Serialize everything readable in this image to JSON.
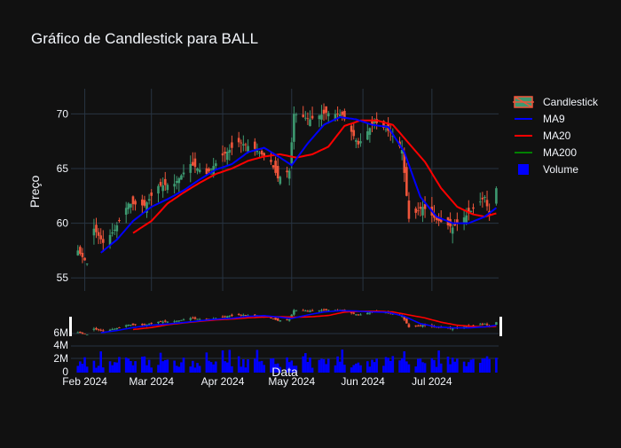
{
  "chart_data": {
    "type": "candlestick",
    "title": "Gráfico de Candlestick para BALL",
    "xlabel": "Data",
    "ylabel": "Preço",
    "legend_placement": "right",
    "colors": {
      "background": "#111111",
      "grid": "#283442",
      "increasing": "#3d9970",
      "decreasing": "#ef553b",
      "ma9": "#0000ff",
      "ma20": "#ff0000",
      "ma200": "#008000",
      "volume": "#0000ff"
    },
    "price_axis": {
      "ylim": [
        53.8,
        72.3
      ],
      "ticks": [
        55,
        60,
        65,
        70
      ]
    },
    "x_axis": {
      "range": [
        "2024-01-26",
        "2024-07-30"
      ],
      "ticks": [
        {
          "date": "2024-02-01",
          "label": "Feb 2024"
        },
        {
          "date": "2024-03-01",
          "label": "Mar 2024"
        },
        {
          "date": "2024-04-01",
          "label": "Apr 2024"
        },
        {
          "date": "2024-05-01",
          "label": "May 2024"
        },
        {
          "date": "2024-06-01",
          "label": "Jun 2024"
        },
        {
          "date": "2024-07-01",
          "label": "Jul 2024"
        }
      ]
    },
    "overview_axis": {
      "ticks": [
        {
          "value": 6,
          "label": "6M"
        },
        {
          "value": 4,
          "label": "4M"
        },
        {
          "value": 2,
          "label": "2M"
        },
        {
          "value": 0,
          "label": "0"
        }
      ]
    },
    "volume_axis": {
      "ylim": [
        0,
        3.3
      ]
    },
    "legend": [
      {
        "key": "candles",
        "label": "Candlestick"
      },
      {
        "key": "ma9",
        "label": "MA9"
      },
      {
        "key": "ma20",
        "label": "MA20"
      },
      {
        "key": "ma200",
        "label": "MA200"
      },
      {
        "key": "volume",
        "label": "Volume"
      }
    ],
    "series": {
      "ma9_anchors": [
        [
          "2024-02-08",
          57.3
        ],
        [
          "2024-02-15",
          58.5
        ],
        [
          "2024-02-22",
          60.2
        ],
        [
          "2024-03-01",
          61.5
        ],
        [
          "2024-03-08",
          62.2
        ],
        [
          "2024-03-15",
          63.0
        ],
        [
          "2024-03-22",
          64.0
        ],
        [
          "2024-03-29",
          64.9
        ],
        [
          "2024-04-05",
          65.4
        ],
        [
          "2024-04-12",
          66.5
        ],
        [
          "2024-04-19",
          66.9
        ],
        [
          "2024-04-26",
          66.0
        ],
        [
          "2024-05-01",
          65.3
        ],
        [
          "2024-05-08",
          67.3
        ],
        [
          "2024-05-15",
          69.0
        ],
        [
          "2024-05-22",
          69.7
        ],
        [
          "2024-05-29",
          69.5
        ],
        [
          "2024-06-05",
          69.0
        ],
        [
          "2024-06-12",
          68.8
        ],
        [
          "2024-06-19",
          66.5
        ],
        [
          "2024-06-26",
          62.4
        ],
        [
          "2024-07-03",
          60.6
        ],
        [
          "2024-07-10",
          60.0
        ],
        [
          "2024-07-17",
          60.0
        ],
        [
          "2024-07-24",
          60.6
        ],
        [
          "2024-07-29",
          61.4
        ]
      ],
      "ma20_anchors": [
        [
          "2024-02-22",
          59.1
        ],
        [
          "2024-03-01",
          60.2
        ],
        [
          "2024-03-08",
          61.8
        ],
        [
          "2024-03-15",
          62.8
        ],
        [
          "2024-03-22",
          63.7
        ],
        [
          "2024-03-29",
          64.5
        ],
        [
          "2024-04-05",
          65.0
        ],
        [
          "2024-04-12",
          65.7
        ],
        [
          "2024-04-19",
          66.1
        ],
        [
          "2024-04-26",
          66.3
        ],
        [
          "2024-05-03",
          66.0
        ],
        [
          "2024-05-10",
          66.3
        ],
        [
          "2024-05-17",
          67.0
        ],
        [
          "2024-05-24",
          68.9
        ],
        [
          "2024-05-31",
          69.4
        ],
        [
          "2024-06-07",
          69.4
        ],
        [
          "2024-06-14",
          69.0
        ],
        [
          "2024-06-21",
          67.3
        ],
        [
          "2024-06-28",
          65.6
        ],
        [
          "2024-07-05",
          63.2
        ],
        [
          "2024-07-12",
          61.5
        ],
        [
          "2024-07-19",
          60.8
        ],
        [
          "2024-07-24",
          60.6
        ],
        [
          "2024-07-29",
          60.9
        ]
      ],
      "close_anchors": [
        [
          "2024-01-29",
          57.5
        ],
        [
          "2024-02-02",
          56.3
        ],
        [
          "2024-02-05",
          59.5
        ],
        [
          "2024-02-09",
          58.2
        ],
        [
          "2024-02-14",
          59.4
        ],
        [
          "2024-02-20",
          61.8
        ],
        [
          "2024-02-27",
          61.6
        ],
        [
          "2024-03-04",
          63.4
        ],
        [
          "2024-03-11",
          63.6
        ],
        [
          "2024-03-18",
          65.4
        ],
        [
          "2024-03-25",
          64.5
        ],
        [
          "2024-04-01",
          66.2
        ],
        [
          "2024-04-08",
          67.4
        ],
        [
          "2024-04-15",
          66.8
        ],
        [
          "2024-04-22",
          65.6
        ],
        [
          "2024-04-25",
          64.1
        ],
        [
          "2024-04-30",
          64.8
        ],
        [
          "2024-05-02",
          70.0
        ],
        [
          "2024-05-09",
          69.5
        ],
        [
          "2024-05-16",
          70.1
        ],
        [
          "2024-05-23",
          69.9
        ],
        [
          "2024-05-30",
          67.2
        ],
        [
          "2024-06-06",
          69.3
        ],
        [
          "2024-06-13",
          68.3
        ],
        [
          "2024-06-18",
          66.7
        ],
        [
          "2024-06-21",
          60.4
        ],
        [
          "2024-06-27",
          61.5
        ],
        [
          "2024-07-03",
          60.3
        ],
        [
          "2024-07-10",
          59.6
        ],
        [
          "2024-07-17",
          60.9
        ],
        [
          "2024-07-24",
          62.4
        ],
        [
          "2024-07-26",
          60.7
        ],
        [
          "2024-07-29",
          63.2
        ]
      ]
    }
  }
}
